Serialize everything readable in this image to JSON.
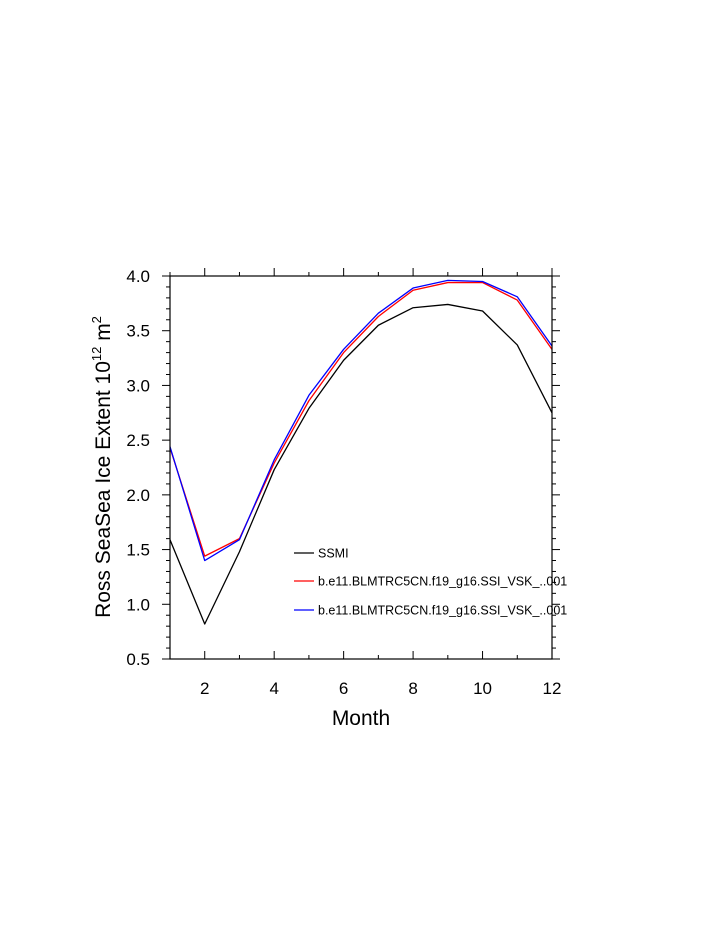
{
  "chart_data": {
    "type": "line",
    "title": "",
    "xlabel": "Month",
    "ylabel": {
      "main": "Ross SeaSea Ice Extent 10",
      "exponent": "12",
      "unit": " m",
      "unit_exponent": "2"
    },
    "xlim": [
      1,
      12
    ],
    "ylim": [
      0.5,
      4.0
    ],
    "x_ticks": [
      2,
      4,
      6,
      8,
      10,
      12
    ],
    "y_ticks": [
      "0.5",
      "1.0",
      "1.5",
      "2.0",
      "2.5",
      "3.0",
      "3.5",
      "4.0"
    ],
    "grid": false,
    "legend_position": "lower-right-inside",
    "x": [
      1,
      2,
      3,
      4,
      5,
      6,
      7,
      8,
      9,
      10,
      11,
      12
    ],
    "series": [
      {
        "name": "SSMI",
        "color": "#000000",
        "values": [
          1.59,
          0.82,
          1.48,
          2.23,
          2.79,
          3.23,
          3.55,
          3.71,
          3.74,
          3.68,
          3.37,
          2.75
        ]
      },
      {
        "name": "b.e11.BLMTRC5CN.f19_g16.SSI_VSK_..001",
        "color": "#ff0000",
        "values": [
          2.43,
          1.44,
          1.6,
          2.29,
          2.86,
          3.3,
          3.63,
          3.87,
          3.94,
          3.94,
          3.78,
          3.33
        ]
      },
      {
        "name": "b.e11.BLMTRC5CN.f19_g16.SSI_VSK_..001",
        "color": "#0000ff",
        "values": [
          2.44,
          1.4,
          1.59,
          2.32,
          2.91,
          3.33,
          3.66,
          3.89,
          3.96,
          3.95,
          3.81,
          3.36
        ]
      }
    ]
  }
}
